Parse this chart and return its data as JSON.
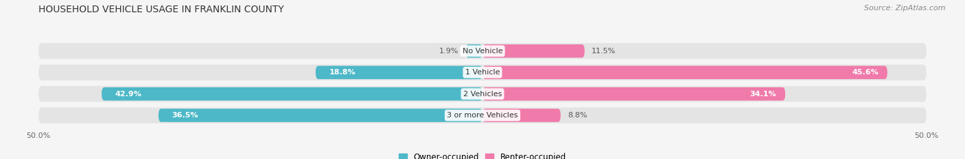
{
  "title": "HOUSEHOLD VEHICLE USAGE IN FRANKLIN COUNTY",
  "source": "Source: ZipAtlas.com",
  "categories": [
    "No Vehicle",
    "1 Vehicle",
    "2 Vehicles",
    "3 or more Vehicles"
  ],
  "owner_values": [
    1.9,
    18.8,
    42.9,
    36.5
  ],
  "renter_values": [
    11.5,
    45.6,
    34.1,
    8.8
  ],
  "owner_color": "#4db8c8",
  "renter_color": "#f07aaa",
  "background_color": "#f5f5f5",
  "bar_bg_color": "#e4e4e4",
  "legend_owner": "Owner-occupied",
  "legend_renter": "Renter-occupied",
  "title_fontsize": 10,
  "source_fontsize": 8,
  "label_fontsize": 8,
  "category_fontsize": 8,
  "bar_height": 0.62,
  "xlim_left": -50,
  "xlim_right": 50
}
